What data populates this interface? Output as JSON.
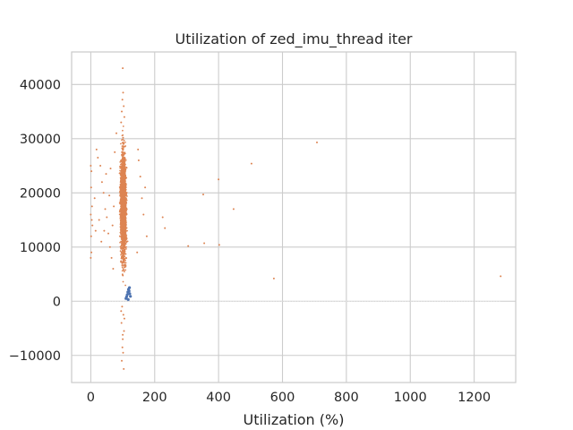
{
  "chart_data": {
    "type": "scatter",
    "title": "Utilization of zed_imu_thread iter",
    "xlabel": "Utilization (%)",
    "ylabel": "",
    "xlim": [
      -60,
      1330
    ],
    "ylim": [
      -15000,
      46000
    ],
    "xticks": [
      0,
      200,
      400,
      600,
      800,
      1000,
      1200
    ],
    "yticks": [
      -10000,
      0,
      10000,
      20000,
      30000,
      40000
    ],
    "xtick_labels": [
      "0",
      "200",
      "400",
      "600",
      "800",
      "1000",
      "1200"
    ],
    "ytick_labels": [
      "−10000",
      "0",
      "10000",
      "20000",
      "30000",
      "40000"
    ],
    "grid": true,
    "legend": "none",
    "colors": {
      "main_series": "#dd8452",
      "baseline_series": "#4c72b0",
      "grid": "#cccccc",
      "frame": "#cccccc",
      "text": "#262626"
    },
    "series": [
      {
        "color": "#dd8452",
        "marker": "dot",
        "points": [
          [
            100,
            43000
          ],
          [
            101,
            38500
          ],
          [
            99,
            37200
          ],
          [
            103,
            36000
          ],
          [
            97,
            35000
          ],
          [
            105,
            34000
          ],
          [
            95,
            33000
          ],
          [
            0,
            25000
          ],
          [
            2,
            24000
          ],
          [
            1,
            21000
          ],
          [
            4,
            17500
          ],
          [
            0,
            16000
          ],
          [
            3,
            15000
          ],
          [
            5,
            14000
          ],
          [
            1,
            12000
          ],
          [
            2,
            9000
          ],
          [
            0,
            8000
          ],
          [
            18,
            28000
          ],
          [
            22,
            26500
          ],
          [
            30,
            25000
          ],
          [
            35,
            22000
          ],
          [
            40,
            20000
          ],
          [
            45,
            17000
          ],
          [
            50,
            15500
          ],
          [
            55,
            12500
          ],
          [
            60,
            10000
          ],
          [
            65,
            8000
          ],
          [
            70,
            6000
          ],
          [
            48,
            23500
          ],
          [
            62,
            24500
          ],
          [
            75,
            27500
          ],
          [
            80,
            31000
          ],
          [
            58,
            19500
          ],
          [
            68,
            14000
          ],
          [
            72,
            17500
          ],
          [
            42,
            13000
          ],
          [
            33,
            11000
          ],
          [
            26,
            15000
          ],
          [
            12,
            19000
          ],
          [
            15,
            13000
          ],
          [
            150,
            26000
          ],
          [
            155,
            23000
          ],
          [
            160,
            19000
          ],
          [
            165,
            16000
          ],
          [
            170,
            21000
          ],
          [
            175,
            12000
          ],
          [
            145,
            9000
          ],
          [
            148,
            28000
          ],
          [
            225,
            15500
          ],
          [
            232,
            13500
          ],
          [
            305,
            10200
          ],
          [
            352,
            19700
          ],
          [
            355,
            10700
          ],
          [
            400,
            22500
          ],
          [
            402,
            10400
          ],
          [
            447,
            17000
          ],
          [
            503,
            25400
          ],
          [
            573,
            4200
          ],
          [
            708,
            29300
          ],
          [
            1283,
            4600
          ],
          [
            98,
            -1000
          ],
          [
            102,
            -2500
          ],
          [
            96,
            -4000
          ],
          [
            104,
            -5500
          ],
          [
            100,
            -7000
          ],
          [
            99,
            -8500
          ],
          [
            101,
            -9500
          ],
          [
            97,
            -11000
          ],
          [
            103,
            -12500
          ],
          [
            100,
            -6200
          ],
          [
            105,
            -3200
          ],
          [
            95,
            -1800
          ]
        ]
      },
      {
        "color": "#4c72b0",
        "marker": "dot",
        "points": [
          [
            110,
            500
          ],
          [
            112,
            800
          ],
          [
            114,
            1200
          ],
          [
            116,
            1700
          ],
          [
            118,
            2200
          ],
          [
            120,
            1900
          ],
          [
            122,
            1400
          ],
          [
            124,
            900
          ],
          [
            117,
            300
          ],
          [
            121,
            2500
          ]
        ]
      }
    ]
  }
}
